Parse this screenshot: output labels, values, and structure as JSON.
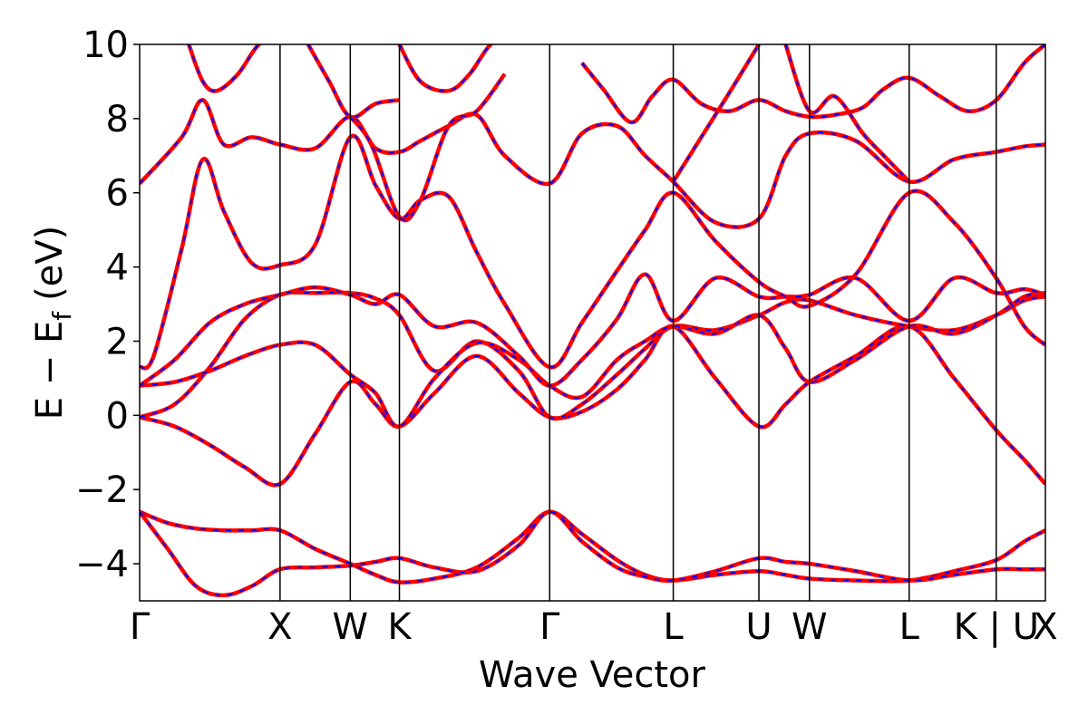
{
  "chart_data": {
    "type": "line",
    "xlabel": "Wave Vector",
    "ylabel": "E − E",
    "ylabel_subscript": "f",
    "ylabel_unit": "(eV)",
    "ylim": [
      -5,
      10
    ],
    "yticks": [
      -4,
      -2,
      0,
      2,
      4,
      6,
      8,
      10
    ],
    "ytick_labels": [
      "−4",
      "−2",
      "0",
      "2",
      "4",
      "6",
      "8",
      "10"
    ],
    "xlim": [
      0,
      6.45
    ],
    "kpoints": [
      {
        "label": "Γ",
        "x": 0
      },
      {
        "label": "X",
        "x": 1.0
      },
      {
        "label": "W",
        "x": 1.5
      },
      {
        "label": "K",
        "x": 1.85
      },
      {
        "label": "Γ",
        "x": 2.92
      },
      {
        "label": "L",
        "x": 3.8
      },
      {
        "label": "U",
        "x": 4.41
      },
      {
        "label": "W",
        "x": 4.77
      },
      {
        "label": "L",
        "x": 5.48
      },
      {
        "label": "K | U",
        "x": 6.1
      },
      {
        "label": "X",
        "x": 6.45
      }
    ],
    "band_colors": {
      "primary": "#ff0000",
      "overlay": "#0000ff"
    },
    "series": [
      {
        "x": [
          0,
          0.2,
          0.4,
          0.6,
          0.8,
          1.0,
          1.25,
          1.5,
          1.68,
          1.85,
          2.1,
          2.4,
          2.7,
          2.92,
          3.15,
          3.4,
          3.6,
          3.8,
          4.1,
          4.41,
          4.6,
          4.77,
          5.1,
          5.48,
          5.8,
          6.1,
          6.3,
          6.45
        ],
        "y": [
          -2.6,
          -2.9,
          -3.05,
          -3.1,
          -3.1,
          -3.1,
          -3.6,
          -4.0,
          -4.3,
          -4.5,
          -4.4,
          -4.1,
          -3.3,
          -2.6,
          -3.2,
          -3.9,
          -4.3,
          -4.45,
          -4.3,
          -4.2,
          -4.3,
          -4.4,
          -4.45,
          -4.45,
          -4.2,
          -3.9,
          -3.4,
          -3.1
        ]
      },
      {
        "x": [
          0,
          0.2,
          0.4,
          0.6,
          0.8,
          1.0,
          1.25,
          1.5,
          1.68,
          1.85,
          2.1,
          2.4,
          2.7,
          2.92,
          3.15,
          3.4,
          3.6,
          3.8,
          4.1,
          4.41,
          4.6,
          4.77,
          5.1,
          5.48,
          5.8,
          6.1,
          6.3,
          6.45
        ],
        "y": [
          -2.6,
          -3.6,
          -4.6,
          -4.85,
          -4.6,
          -4.15,
          -4.1,
          -4.05,
          -3.95,
          -3.85,
          -4.1,
          -4.2,
          -3.5,
          -2.6,
          -3.4,
          -4.1,
          -4.35,
          -4.45,
          -4.2,
          -3.85,
          -3.95,
          -4.0,
          -4.2,
          -4.45,
          -4.3,
          -4.15,
          -4.15,
          -4.15
        ]
      },
      {
        "x": [
          0,
          0.25,
          0.5,
          0.75,
          1.0,
          1.25,
          1.5,
          1.68,
          1.85,
          2.1,
          2.4,
          2.7,
          2.92,
          3.15,
          3.4,
          3.6,
          3.8,
          4.1,
          4.41,
          4.6,
          4.77,
          5.1,
          5.48,
          5.8,
          6.1,
          6.3,
          6.45
        ],
        "y": [
          -0.05,
          -0.3,
          -0.8,
          -1.4,
          -1.85,
          -0.5,
          0.9,
          0.3,
          -0.3,
          0.6,
          1.6,
          0.6,
          -0.05,
          0.1,
          0.7,
          1.5,
          2.4,
          1.0,
          -0.3,
          0.3,
          0.9,
          1.6,
          2.4,
          1.0,
          -0.4,
          -1.2,
          -1.85
        ]
      },
      {
        "x": [
          0,
          0.25,
          0.5,
          0.75,
          1.0,
          1.25,
          1.5,
          1.68,
          1.85,
          2.1,
          2.4,
          2.7,
          2.92,
          3.15,
          3.4,
          3.6,
          3.8,
          4.1,
          4.41,
          4.6,
          4.77,
          5.1,
          5.48,
          5.8,
          6.1,
          6.3,
          6.45
        ],
        "y": [
          -0.05,
          0.3,
          1.3,
          2.6,
          3.25,
          3.3,
          3.3,
          3.15,
          2.7,
          1.2,
          2.0,
          1.2,
          -0.05,
          0.3,
          1.1,
          1.8,
          2.4,
          2.3,
          2.7,
          3.05,
          3.1,
          2.7,
          2.4,
          2.3,
          2.7,
          3.1,
          3.2
        ]
      },
      {
        "x": [
          0,
          0.25,
          0.5,
          0.75,
          1.0,
          1.25,
          1.5,
          1.68,
          1.85,
          2.1,
          2.4,
          2.7,
          2.92,
          3.15,
          3.4,
          3.6,
          3.8,
          4.1,
          4.41,
          4.6,
          4.77,
          5.1,
          5.48,
          5.8,
          6.1,
          6.3,
          6.45
        ],
        "y": [
          0.8,
          0.9,
          1.2,
          1.6,
          1.9,
          1.9,
          1.1,
          0.6,
          -0.3,
          1.0,
          1.95,
          1.5,
          0.8,
          0.5,
          1.5,
          2.0,
          2.4,
          2.2,
          2.7,
          1.8,
          0.9,
          1.5,
          2.4,
          2.2,
          2.7,
          3.2,
          3.3
        ]
      },
      {
        "x": [
          0,
          0.25,
          0.5,
          0.75,
          1.0,
          1.25,
          1.5,
          1.68,
          1.85,
          2.1,
          2.4,
          2.7,
          2.92,
          3.15,
          3.4,
          3.6,
          3.8,
          4.1,
          4.41,
          4.6,
          4.77,
          5.1,
          5.48,
          5.8,
          6.1,
          6.3,
          6.45
        ],
        "y": [
          0.8,
          1.5,
          2.5,
          3.0,
          3.25,
          3.45,
          3.25,
          3.0,
          3.25,
          2.4,
          2.5,
          1.6,
          0.8,
          1.5,
          2.6,
          3.8,
          2.55,
          3.7,
          3.2,
          3.2,
          3.25,
          3.7,
          2.55,
          3.7,
          3.3,
          3.4,
          3.25
        ]
      },
      {
        "x": [
          0,
          0.1,
          0.3,
          0.45,
          0.6,
          0.8,
          1.0,
          1.25,
          1.5,
          1.68,
          1.85,
          2.0,
          2.2,
          2.4,
          2.6,
          2.92,
          3.15,
          3.4,
          3.6,
          3.8,
          4.1,
          4.41,
          4.6,
          4.77,
          5.1,
          5.48,
          5.8,
          6.1,
          6.3,
          6.45
        ],
        "y": [
          1.3,
          1.6,
          4.5,
          6.9,
          5.5,
          4.1,
          4.05,
          4.6,
          7.5,
          6.2,
          5.3,
          5.8,
          5.9,
          4.4,
          3.0,
          1.3,
          2.5,
          3.9,
          5.0,
          6.0,
          4.7,
          3.6,
          3.2,
          2.95,
          3.8,
          6.0,
          5.2,
          3.7,
          2.4,
          1.9
        ]
      },
      {
        "x": [
          0,
          0.3,
          0.45,
          0.6,
          0.8,
          1.0,
          1.25,
          1.5,
          1.68,
          1.85,
          2.0,
          2.2,
          2.4,
          2.6,
          2.92,
          3.15,
          3.4,
          3.6,
          3.8,
          4.1,
          4.41,
          4.6,
          4.77,
          5.1,
          5.48,
          5.8,
          6.1,
          6.3,
          6.45
        ],
        "y": [
          6.25,
          7.5,
          8.5,
          7.3,
          7.5,
          7.3,
          7.2,
          8.05,
          7.2,
          7.1,
          7.4,
          7.8,
          8.1,
          7.0,
          6.25,
          7.6,
          7.8,
          7.0,
          6.3,
          5.2,
          5.3,
          7.0,
          7.6,
          7.4,
          6.3,
          6.9,
          7.1,
          7.25,
          7.3
        ]
      },
      {
        "x": [
          0.35,
          0.45,
          0.55,
          0.7,
          0.85,
          1.0
        ],
        "y": [
          10,
          9.0,
          8.75,
          9.2,
          10,
          10.2
        ]
      },
      {
        "x": [
          1.2,
          1.35,
          1.5,
          1.68,
          1.85
        ],
        "y": [
          10,
          9.0,
          8.05,
          8.4,
          8.5
        ]
      },
      {
        "x": [
          1.85,
          2.0,
          2.2,
          2.35,
          2.5,
          2.7
        ],
        "y": [
          10,
          9.0,
          8.75,
          9.2,
          10,
          10.5
        ]
      },
      {
        "x": [
          1.5,
          1.65,
          1.85,
          2.0,
          2.2,
          2.4,
          2.6
        ],
        "y": [
          8.05,
          7.3,
          5.35,
          5.8,
          7.8,
          8.2,
          9.2
        ]
      },
      {
        "x": [
          3.15,
          3.3,
          3.5,
          3.65,
          3.8,
          4.0,
          4.2,
          4.41,
          4.6,
          4.77,
          4.95,
          5.15,
          5.3,
          5.48,
          5.7,
          5.9,
          6.1,
          6.3,
          6.45
        ],
        "y": [
          9.5,
          8.8,
          7.9,
          8.6,
          9.05,
          8.4,
          8.2,
          8.5,
          8.2,
          8.05,
          8.1,
          8.3,
          8.8,
          9.1,
          8.6,
          8.2,
          8.5,
          9.5,
          10
        ]
      },
      {
        "x": [
          3.8,
          4.0,
          4.2,
          4.41
        ],
        "y": [
          6.3,
          7.5,
          8.7,
          10
        ]
      },
      {
        "x": [
          4.6,
          4.77,
          4.95,
          5.15,
          5.3,
          5.48
        ],
        "y": [
          10,
          8.2,
          8.6,
          7.6,
          7.0,
          6.3
        ]
      }
    ]
  }
}
